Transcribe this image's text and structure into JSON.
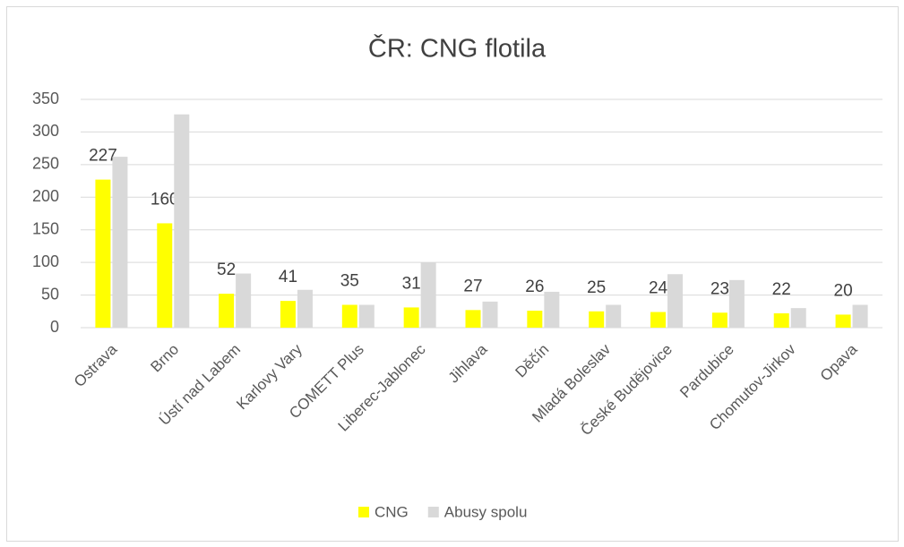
{
  "chart_data": {
    "type": "bar",
    "title": "ČR: CNG flotila",
    "categories": [
      "Ostrava",
      "Brno",
      "Ústí nad Labem",
      "Karlovy Vary",
      "COMETT Plus",
      "Liberec-Jablonec",
      "Jihlava",
      "Děčín",
      "Mladá Boleslav",
      "České Budějovice",
      "Pardubice",
      "Chomutov-Jirkov",
      "Opava"
    ],
    "series": [
      {
        "name": "CNG",
        "color": "#ffff00",
        "values": [
          227,
          160,
          52,
          41,
          35,
          31,
          27,
          26,
          25,
          24,
          23,
          22,
          20
        ],
        "data_labels": true
      },
      {
        "name": "Abusy spolu",
        "color": "#d9d9d9",
        "values": [
          262,
          327,
          83,
          58,
          35,
          100,
          40,
          55,
          35,
          82,
          73,
          30,
          35
        ]
      }
    ],
    "ylim": [
      0,
      350
    ],
    "yticks": [
      0,
      50,
      100,
      150,
      200,
      250,
      300,
      350
    ],
    "grid": true,
    "legend": "bottom"
  }
}
